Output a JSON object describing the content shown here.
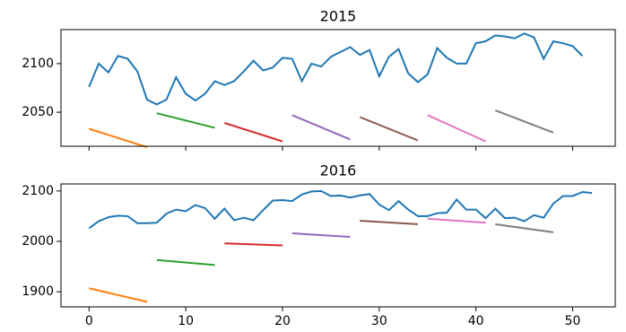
{
  "chart_data": [
    {
      "type": "line",
      "title": "2015",
      "xlim": [
        -2.9,
        54.4
      ],
      "ylim": [
        2015,
        2135
      ],
      "yticks": [
        2050,
        2100
      ],
      "series": [
        {
          "color": "#1f77b4",
          "x": [
            0,
            1,
            2,
            3,
            4,
            5,
            6,
            7,
            8,
            9,
            10,
            11,
            12,
            13,
            14,
            15,
            16,
            17,
            18,
            19,
            20,
            21,
            22,
            23,
            24,
            25,
            26,
            27,
            28,
            29,
            30,
            31,
            32,
            33,
            34,
            35,
            36,
            37,
            38,
            39,
            40,
            41,
            42,
            43,
            44,
            45,
            46,
            47,
            48,
            49,
            50,
            51
          ],
          "values": [
            2076,
            2100,
            2091,
            2108,
            2105,
            2092,
            2063,
            2058,
            2063,
            2086,
            2069,
            2062,
            2069,
            2082,
            2078,
            2082,
            2092,
            2103,
            2093,
            2096,
            2106,
            2105,
            2082,
            2100,
            2097,
            2107,
            2112,
            2117,
            2109,
            2114,
            2087,
            2107,
            2115,
            2090,
            2081,
            2089,
            2116,
            2106,
            2100,
            2100,
            2121,
            2123,
            2129,
            2128,
            2126,
            2131,
            2127,
            2105,
            2123,
            2121,
            2118,
            2108
          ]
        },
        {
          "color": "#ff7f0e",
          "x": [
            0,
            6
          ],
          "values": [
            2033,
            2014
          ]
        },
        {
          "color": "#2ca02c",
          "x": [
            7,
            13
          ],
          "values": [
            2049,
            2034
          ]
        },
        {
          "color": "#d62728",
          "x": [
            14,
            20
          ],
          "values": [
            2039,
            2020
          ]
        },
        {
          "color": "#9467bd",
          "x": [
            21,
            27
          ],
          "values": [
            2047,
            2022
          ]
        },
        {
          "color": "#8c564b",
          "x": [
            28,
            34
          ],
          "values": [
            2045,
            2021
          ]
        },
        {
          "color": "#e377c2",
          "x": [
            35,
            41
          ],
          "values": [
            2047,
            2020
          ]
        },
        {
          "color": "#7f7f7f",
          "x": [
            42,
            48
          ],
          "values": [
            2052,
            2029
          ]
        }
      ]
    },
    {
      "type": "line",
      "title": "2016",
      "xlim": [
        -2.9,
        54.4
      ],
      "ylim": [
        1870,
        2114
      ],
      "xticks": [
        0,
        10,
        20,
        30,
        40,
        50
      ],
      "yticks": [
        1900,
        2000,
        2100
      ],
      "series": [
        {
          "color": "#1f77b4",
          "x": [
            0,
            1,
            2,
            3,
            4,
            5,
            6,
            7,
            8,
            9,
            10,
            11,
            12,
            13,
            14,
            15,
            16,
            17,
            18,
            19,
            20,
            21,
            22,
            23,
            24,
            25,
            26,
            27,
            28,
            29,
            30,
            31,
            32,
            33,
            34,
            35,
            36,
            37,
            38,
            39,
            40,
            41,
            42,
            43,
            44,
            45,
            46,
            47,
            48,
            49,
            50,
            51,
            52
          ],
          "values": [
            2026,
            2040,
            2048,
            2051,
            2050,
            2036,
            2036,
            2037,
            2055,
            2063,
            2060,
            2072,
            2066,
            2045,
            2065,
            2042,
            2047,
            2042,
            2062,
            2081,
            2082,
            2080,
            2093,
            2099,
            2100,
            2090,
            2091,
            2087,
            2091,
            2094,
            2073,
            2062,
            2080,
            2063,
            2050,
            2050,
            2056,
            2057,
            2083,
            2063,
            2063,
            2046,
            2065,
            2046,
            2047,
            2040,
            2052,
            2047,
            2075,
            2090,
            2090,
            2098,
            2096
          ]
        },
        {
          "color": "#ff7f0e",
          "x": [
            0,
            6
          ],
          "values": [
            1907,
            1880
          ]
        },
        {
          "color": "#2ca02c",
          "x": [
            7,
            13
          ],
          "values": [
            1963,
            1953
          ]
        },
        {
          "color": "#d62728",
          "x": [
            14,
            20
          ],
          "values": [
            1996,
            1992
          ]
        },
        {
          "color": "#9467bd",
          "x": [
            21,
            27
          ],
          "values": [
            2016,
            2009
          ]
        },
        {
          "color": "#8c564b",
          "x": [
            28,
            34
          ],
          "values": [
            2041,
            2034
          ]
        },
        {
          "color": "#e377c2",
          "x": [
            35,
            41
          ],
          "values": [
            2045,
            2037
          ]
        },
        {
          "color": "#7f7f7f",
          "x": [
            42,
            48
          ],
          "values": [
            2034,
            2018
          ]
        }
      ]
    }
  ]
}
